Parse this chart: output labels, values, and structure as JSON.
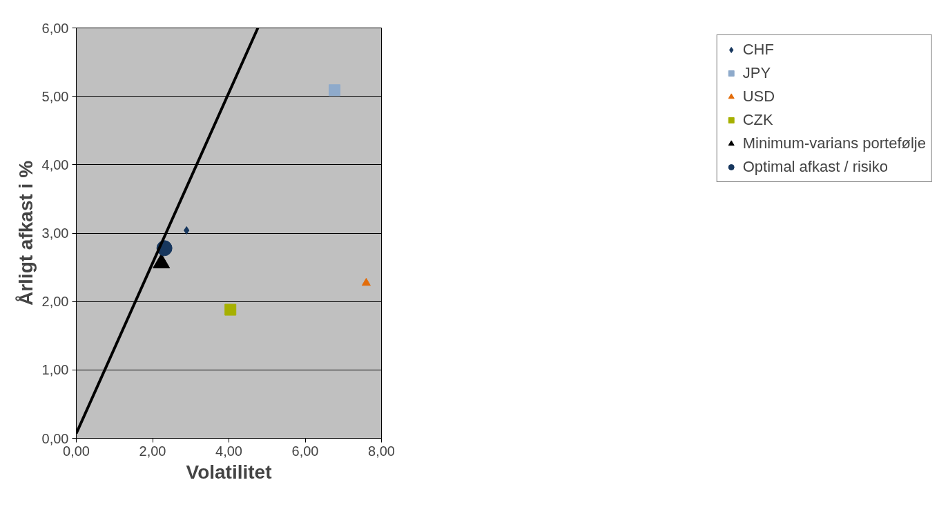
{
  "chart_data": {
    "type": "scatter",
    "xlabel": "Volatilitet",
    "ylabel": "Årligt afkast i %",
    "xlim": [
      0,
      8
    ],
    "ylim": [
      0,
      6
    ],
    "xticks": [
      {
        "value": 0,
        "label": "0,00"
      },
      {
        "value": 2,
        "label": "2,00"
      },
      {
        "value": 4,
        "label": "4,00"
      },
      {
        "value": 6,
        "label": "6,00"
      },
      {
        "value": 8,
        "label": "8,00"
      }
    ],
    "yticks": [
      {
        "value": 0,
        "label": "0,00"
      },
      {
        "value": 1,
        "label": "1,00"
      },
      {
        "value": 2,
        "label": "2,00"
      },
      {
        "value": 3,
        "label": "3,00"
      },
      {
        "value": 4,
        "label": "4,00"
      },
      {
        "value": 5,
        "label": "5,00"
      },
      {
        "value": 6,
        "label": "6,00"
      }
    ],
    "grid": "y",
    "legend": "right",
    "series": [
      {
        "name": "CHF",
        "color": "#17375e",
        "marker": "diamond",
        "x": [
          2.89
        ],
        "values": [
          3.04
        ]
      },
      {
        "name": "JPY",
        "color": "#8eaacb",
        "marker": "square",
        "x": [
          6.77
        ],
        "values": [
          5.09
        ]
      },
      {
        "name": "USD",
        "color": "#e36c09",
        "marker": "triangle",
        "x": [
          7.6
        ],
        "values": [
          2.27
        ]
      },
      {
        "name": "CZK",
        "color": "#a6b000",
        "marker": "square",
        "x": [
          4.04
        ],
        "values": [
          1.88
        ]
      },
      {
        "name": "Minimum-varians portefølje",
        "color": "#000000",
        "marker": "triangle",
        "x": [
          2.23
        ],
        "values": [
          2.56
        ]
      },
      {
        "name": "Optimal afkast / risiko",
        "color": "#17375e",
        "marker": "circle",
        "x": [
          2.31
        ],
        "values": [
          2.78
        ]
      },
      {
        "type": "line",
        "color": "#000000",
        "line_style": "solid",
        "x": [
          0,
          4.76
        ],
        "values": [
          0.07,
          6.0
        ]
      }
    ]
  }
}
